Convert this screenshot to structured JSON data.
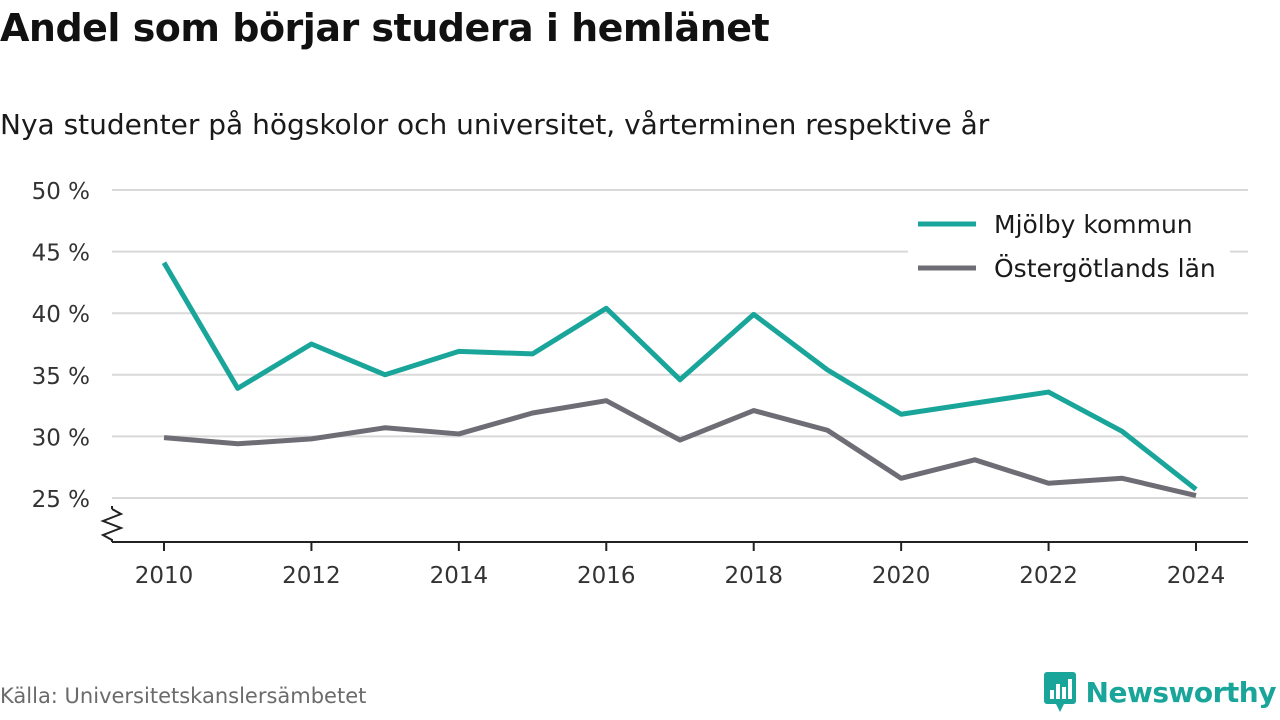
{
  "title": "Andel som börjar studera i hemlänet",
  "subtitle": "Nya studenter på högskolor och universitet, vårterminen respektive år",
  "source": "Källa: Universitetskanslersämbetet",
  "brand": {
    "name": "Newsworthy",
    "icon": "newsworthy-logo-icon",
    "color": "#1aa59b"
  },
  "chart_data": {
    "type": "line",
    "title": "Andel som börjar studera i hemlänet",
    "subtitle": "Nya studenter på högskolor och universitet, vårterminen respektive år",
    "xlabel": "",
    "ylabel": "",
    "x": [
      2010,
      2011,
      2012,
      2013,
      2014,
      2015,
      2016,
      2017,
      2018,
      2019,
      2020,
      2021,
      2022,
      2023,
      2024
    ],
    "x_ticks": [
      "2010",
      "2012",
      "2014",
      "2016",
      "2018",
      "2020",
      "2022",
      "2024"
    ],
    "y_ticks": [
      "25 %",
      "30 %",
      "35 %",
      "40 %",
      "45 %",
      "50 %"
    ],
    "ylim": [
      21.5,
      50
    ],
    "y_axis_break": true,
    "grid": true,
    "legend_position": "top-right",
    "series": [
      {
        "name": "Mjölby kommun",
        "color": "#1aa59b",
        "values": [
          44.1,
          33.9,
          37.5,
          35.0,
          36.9,
          36.7,
          40.4,
          34.6,
          39.9,
          35.4,
          31.8,
          32.7,
          33.6,
          30.4,
          25.7
        ]
      },
      {
        "name": "Östergötlands län",
        "color": "#6e6d75",
        "values": [
          29.9,
          29.4,
          29.8,
          30.7,
          30.2,
          31.9,
          32.9,
          29.7,
          32.1,
          30.5,
          26.6,
          28.1,
          26.2,
          26.6,
          25.2
        ]
      }
    ]
  }
}
